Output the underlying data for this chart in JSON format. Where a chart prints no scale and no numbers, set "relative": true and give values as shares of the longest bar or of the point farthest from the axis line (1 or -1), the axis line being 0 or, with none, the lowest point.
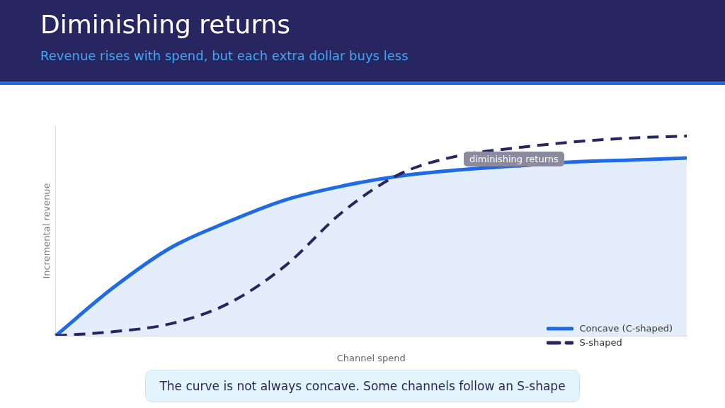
{
  "chart_data": {
    "type": "line",
    "title": "Diminishing returns",
    "subtitle": "Revenue rises with spend, but each extra dollar buys less",
    "xlabel": "Channel spend",
    "ylabel": "Incremental revenue",
    "relative": true,
    "grid": false,
    "legend": "bottom right",
    "marker": "none",
    "categories": [
      null,
      null,
      null,
      null,
      null,
      null,
      null,
      null,
      null,
      null,
      null,
      null
    ],
    "series": [
      {
        "name": "Concave (C-shaped)",
        "type": "area",
        "color": "#1f6ae6",
        "line_style": "solid",
        "values": [
          0,
          0.24,
          0.44,
          0.57,
          0.68,
          0.75,
          0.8,
          0.83,
          0.85,
          0.87,
          0.88,
          0.89
        ]
      },
      {
        "name": "S-shaped",
        "type": "line",
        "color": "#272660",
        "line_style": "dashed",
        "values": [
          0,
          0.02,
          0.06,
          0.16,
          0.35,
          0.62,
          0.81,
          0.9,
          0.94,
          0.97,
          0.99,
          1
        ]
      }
    ],
    "annotations": [
      "diminishing returns",
      "The curve is not always concave. Some channels follow an S-shape"
    ]
  }
}
